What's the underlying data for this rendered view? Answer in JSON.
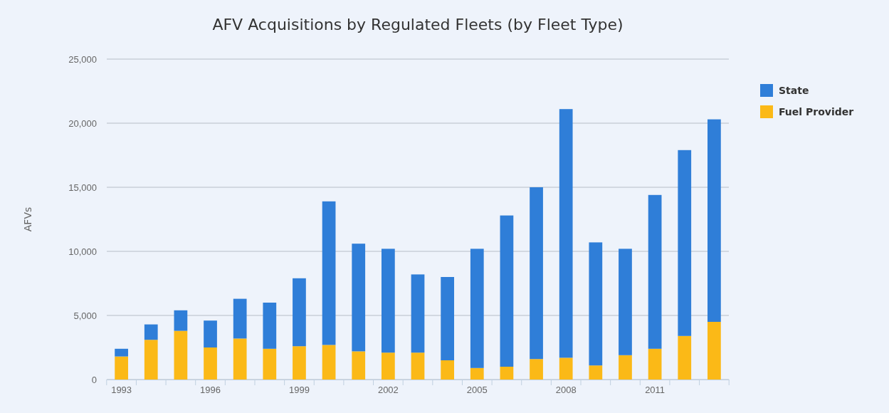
{
  "chart_data": {
    "type": "bar",
    "title": "AFV Acquisitions by Regulated Fleets (by Fleet Type)",
    "ylabel": "AFVs",
    "stacked": true,
    "grid": "y",
    "legend": "top right",
    "categories": [
      "1993",
      null,
      null,
      "1996",
      null,
      null,
      "1999",
      null,
      null,
      "2002",
      null,
      null,
      "2005",
      null,
      null,
      "2008",
      null,
      null,
      "2011",
      null,
      null
    ],
    "ylim": [
      0,
      25000
    ],
    "yticks": [
      0,
      {
        "value": 5000,
        "label": "5,000"
      },
      {
        "value": 10000,
        "label": "10,000"
      },
      {
        "value": 15000,
        "label": "15,000"
      },
      {
        "value": 20000,
        "label": "20,000"
      },
      {
        "value": 25000,
        "label": "25,000"
      }
    ],
    "series": [
      {
        "name": "Fuel Provider",
        "color": "#fbb917",
        "values": [
          1800,
          3100,
          3800,
          2500,
          3200,
          2400,
          2600,
          2700,
          2200,
          2100,
          2100,
          1500,
          900,
          1000,
          1600,
          1700,
          1100,
          1900,
          2400,
          3400,
          4500
        ]
      },
      {
        "name": "State",
        "color": "#2f7ed8",
        "values": [
          600,
          1200,
          1600,
          2100,
          3100,
          3600,
          5300,
          11200,
          8400,
          8100,
          6100,
          6500,
          9300,
          11800,
          13400,
          19400,
          9600,
          8300,
          12000,
          14500,
          15800
        ]
      }
    ]
  }
}
